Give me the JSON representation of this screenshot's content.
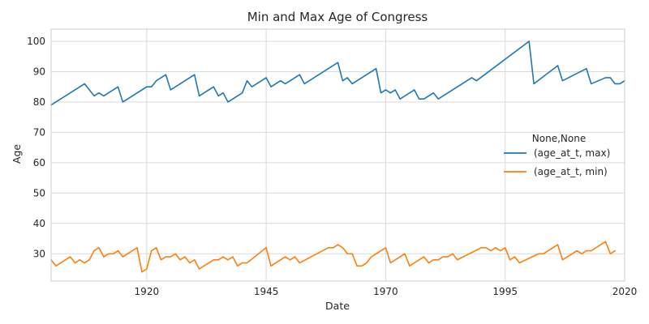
{
  "chart_data": {
    "type": "line",
    "title": "Min and Max Age of Congress",
    "xlabel": "Date",
    "ylabel": "Age",
    "xlim": [
      1900,
      2020
    ],
    "ylim": [
      21,
      104
    ],
    "x_ticks": [
      1920,
      1945,
      1970,
      1995,
      2020
    ],
    "y_ticks": [
      30,
      40,
      50,
      60,
      70,
      80,
      90,
      100
    ],
    "grid": true,
    "legend": {
      "title": "None,None",
      "placement": "center-right"
    },
    "series": [
      {
        "name": "(age_at_t, max)",
        "color": "#1f77b4",
        "points": [
          [
            1900,
            79
          ],
          [
            1907,
            86
          ],
          [
            1909,
            82
          ],
          [
            1910,
            83
          ],
          [
            1911,
            82
          ],
          [
            1914,
            85
          ],
          [
            1915,
            80
          ],
          [
            1920,
            85
          ],
          [
            1921,
            85
          ],
          [
            1922,
            87
          ],
          [
            1924,
            89
          ],
          [
            1925,
            84
          ],
          [
            1930,
            89
          ],
          [
            1931,
            82
          ],
          [
            1934,
            85
          ],
          [
            1935,
            82
          ],
          [
            1936,
            83
          ],
          [
            1937,
            80
          ],
          [
            1940,
            83
          ],
          [
            1941,
            87
          ],
          [
            1942,
            85
          ],
          [
            1945,
            88
          ],
          [
            1946,
            85
          ],
          [
            1948,
            87
          ],
          [
            1949,
            86
          ],
          [
            1952,
            89
          ],
          [
            1953,
            86
          ],
          [
            1960,
            93
          ],
          [
            1961,
            87
          ],
          [
            1962,
            88
          ],
          [
            1963,
            86
          ],
          [
            1968,
            91
          ],
          [
            1969,
            83
          ],
          [
            1970,
            84
          ],
          [
            1971,
            83
          ],
          [
            1972,
            84
          ],
          [
            1973,
            81
          ],
          [
            1976,
            84
          ],
          [
            1977,
            81
          ],
          [
            1978,
            81
          ],
          [
            1980,
            83
          ],
          [
            1981,
            81
          ],
          [
            1988,
            88
          ],
          [
            1989,
            87
          ],
          [
            2000,
            100
          ],
          [
            2001,
            86
          ],
          [
            2006,
            92
          ],
          [
            2007,
            87
          ],
          [
            2012,
            91
          ],
          [
            2013,
            86
          ],
          [
            2016,
            88
          ],
          [
            2017,
            88
          ],
          [
            2018,
            86
          ],
          [
            2019,
            86
          ],
          [
            2020,
            87
          ]
        ]
      },
      {
        "name": "(age_at_t, min)",
        "color": "#ff7f0e",
        "points": [
          [
            1900,
            28
          ],
          [
            1901,
            26
          ],
          [
            1904,
            29
          ],
          [
            1905,
            27
          ],
          [
            1906,
            28
          ],
          [
            1907,
            27
          ],
          [
            1908,
            28
          ],
          [
            1909,
            31
          ],
          [
            1910,
            32
          ],
          [
            1911,
            29
          ],
          [
            1912,
            30
          ],
          [
            1913,
            30
          ],
          [
            1914,
            31
          ],
          [
            1915,
            29
          ],
          [
            1918,
            32
          ],
          [
            1919,
            24
          ],
          [
            1920,
            25
          ],
          [
            1921,
            31
          ],
          [
            1922,
            32
          ],
          [
            1923,
            28
          ],
          [
            1924,
            29
          ],
          [
            1925,
            29
          ],
          [
            1926,
            30
          ],
          [
            1927,
            28
          ],
          [
            1928,
            29
          ],
          [
            1929,
            27
          ],
          [
            1930,
            28
          ],
          [
            1931,
            25
          ],
          [
            1934,
            28
          ],
          [
            1935,
            28
          ],
          [
            1936,
            29
          ],
          [
            1937,
            28
          ],
          [
            1938,
            29
          ],
          [
            1939,
            26
          ],
          [
            1940,
            27
          ],
          [
            1941,
            27
          ],
          [
            1945,
            32
          ],
          [
            1946,
            26
          ],
          [
            1949,
            29
          ],
          [
            1950,
            28
          ],
          [
            1951,
            29
          ],
          [
            1952,
            27
          ],
          [
            1958,
            32
          ],
          [
            1959,
            32
          ],
          [
            1960,
            33
          ],
          [
            1961,
            32
          ],
          [
            1962,
            30
          ],
          [
            1963,
            30
          ],
          [
            1964,
            26
          ],
          [
            1965,
            26
          ],
          [
            1966,
            27
          ],
          [
            1967,
            29
          ],
          [
            1970,
            32
          ],
          [
            1971,
            27
          ],
          [
            1974,
            30
          ],
          [
            1975,
            26
          ],
          [
            1978,
            29
          ],
          [
            1979,
            27
          ],
          [
            1980,
            28
          ],
          [
            1981,
            28
          ],
          [
            1982,
            29
          ],
          [
            1983,
            29
          ],
          [
            1984,
            30
          ],
          [
            1985,
            28
          ],
          [
            1990,
            32
          ],
          [
            1991,
            32
          ],
          [
            1992,
            31
          ],
          [
            1993,
            32
          ],
          [
            1994,
            31
          ],
          [
            1995,
            32
          ],
          [
            1996,
            28
          ],
          [
            1997,
            29
          ],
          [
            1998,
            27
          ],
          [
            2002,
            30
          ],
          [
            2003,
            30
          ],
          [
            2006,
            33
          ],
          [
            2007,
            28
          ],
          [
            2010,
            31
          ],
          [
            2011,
            30
          ],
          [
            2012,
            31
          ],
          [
            2013,
            31
          ],
          [
            2016,
            34
          ],
          [
            2017,
            30
          ],
          [
            2018,
            31
          ]
        ]
      }
    ]
  }
}
